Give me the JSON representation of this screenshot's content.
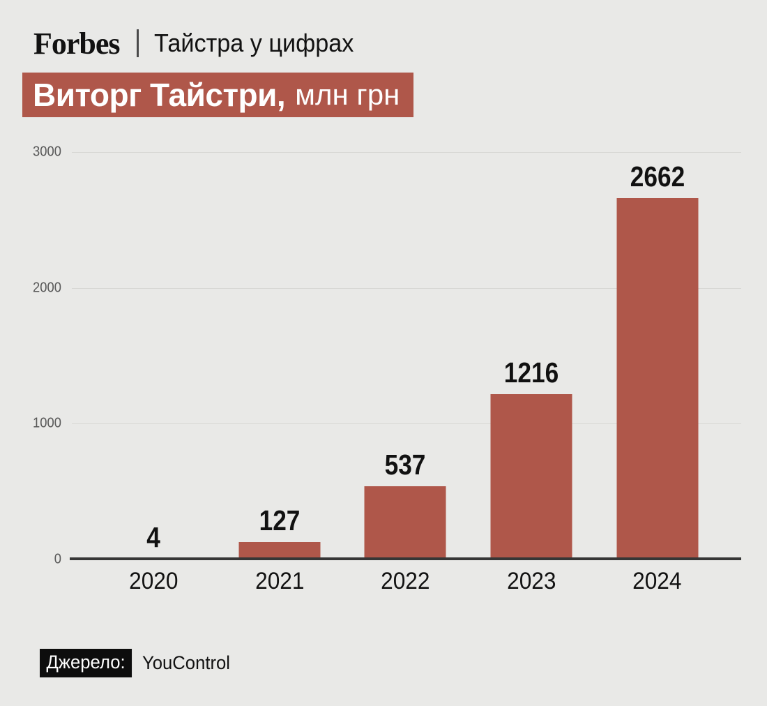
{
  "header": {
    "brand": "Forbes",
    "series": "Тайстра у цифрах"
  },
  "title": {
    "main": "Виторг Тайстри,",
    "unit": "млн грн"
  },
  "chart_data": {
    "type": "bar",
    "title": "Виторг Тайстри, млн грн",
    "categories": [
      "2020",
      "2021",
      "2022",
      "2023",
      "2024"
    ],
    "values": [
      4,
      127,
      537,
      1216,
      2662
    ],
    "xlabel": "",
    "ylabel": "",
    "ylim": [
      0,
      3000
    ],
    "yticks": [
      0,
      1000,
      2000,
      3000
    ],
    "grid": "horizontal",
    "legend": "none",
    "bar_color": "#af574a",
    "value_labels_shown": true
  },
  "footer": {
    "source_label": "Джерело:",
    "source_value": "YouControl"
  },
  "colors": {
    "background": "#e9e9e7",
    "accent": "#af574a",
    "axis": "#363636",
    "gridline": "#d7d7d4",
    "tick_text": "#585858",
    "text": "#111111",
    "title_text": "#ffffff",
    "source_block": "#0d0d0d"
  }
}
